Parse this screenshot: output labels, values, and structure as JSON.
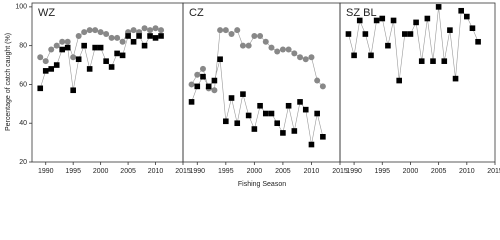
{
  "chart_data": [
    {
      "type": "line",
      "title": "WZ",
      "y_label": "Percentage of catch caught (%)",
      "xlim": [
        1987.5,
        2015
      ],
      "ylim": [
        20,
        102
      ],
      "xticks": [
        1990,
        1995,
        2000,
        2005,
        2010,
        2015
      ],
      "yticks": [
        20,
        40,
        60,
        80,
        100
      ],
      "x": [
        1989,
        1990,
        1991,
        1992,
        1993,
        1994,
        1995,
        1996,
        1997,
        1998,
        1999,
        2000,
        2001,
        2002,
        2003,
        2004,
        2005,
        2006,
        2007,
        2008,
        2009,
        2010,
        2011
      ],
      "series": [
        {
          "color": "#888888",
          "marker": "circle",
          "values": [
            74,
            72,
            78,
            80,
            82,
            82,
            74,
            85,
            87,
            88,
            88,
            87,
            86,
            84,
            84,
            82,
            87,
            88,
            87,
            89,
            88,
            89,
            88
          ]
        },
        {
          "color": "#000000",
          "marker": "square",
          "values": [
            58,
            67,
            68,
            70,
            78,
            79,
            57,
            73,
            80,
            68,
            79,
            79,
            72,
            69,
            76,
            75,
            85,
            82,
            85,
            80,
            85,
            84,
            85
          ]
        }
      ]
    },
    {
      "type": "line",
      "title": "CZ",
      "x_label": "Fishing Season",
      "xlim": [
        1987.5,
        2015
      ],
      "ylim": [
        20,
        102
      ],
      "xticks": [
        1990,
        1995,
        2000,
        2005,
        2010,
        2015
      ],
      "x": [
        1989,
        1990,
        1991,
        1992,
        1993,
        1994,
        1995,
        1996,
        1997,
        1998,
        1999,
        2000,
        2001,
        2002,
        2003,
        2004,
        2005,
        2006,
        2007,
        2008,
        2009,
        2010,
        2011,
        2012
      ],
      "series": [
        {
          "color": "#888888",
          "marker": "circle",
          "values": [
            60,
            65,
            68,
            58,
            57,
            88,
            88,
            86,
            88,
            80,
            80,
            85,
            85,
            82,
            79,
            77,
            78,
            78,
            76,
            74,
            73,
            74,
            62,
            59
          ]
        },
        {
          "color": "#000000",
          "marker": "square",
          "values": [
            51,
            59,
            64,
            59,
            62,
            73,
            41,
            53,
            40,
            55,
            44,
            37,
            49,
            45,
            45,
            40,
            35,
            49,
            36,
            51,
            47,
            29,
            45,
            33
          ]
        }
      ]
    },
    {
      "type": "line",
      "title": "SZ BL",
      "xlim": [
        1987.5,
        2015
      ],
      "ylim": [
        20,
        102
      ],
      "xticks": [
        1990,
        1995,
        2000,
        2005,
        2010,
        2015
      ],
      "x": [
        1989,
        1990,
        1991,
        1992,
        1993,
        1994,
        1995,
        1996,
        1997,
        1998,
        1999,
        2000,
        2001,
        2002,
        2003,
        2004,
        2005,
        2006,
        2007,
        2008,
        2009,
        2010,
        2011,
        2012
      ],
      "series": [
        {
          "color": "#000000",
          "marker": "square",
          "values": [
            86,
            75,
            93,
            86,
            75,
            93,
            94,
            80,
            93,
            62,
            86,
            86,
            92,
            72,
            94,
            72,
            100,
            72,
            88,
            63,
            98,
            95,
            89,
            82
          ]
        }
      ]
    }
  ]
}
